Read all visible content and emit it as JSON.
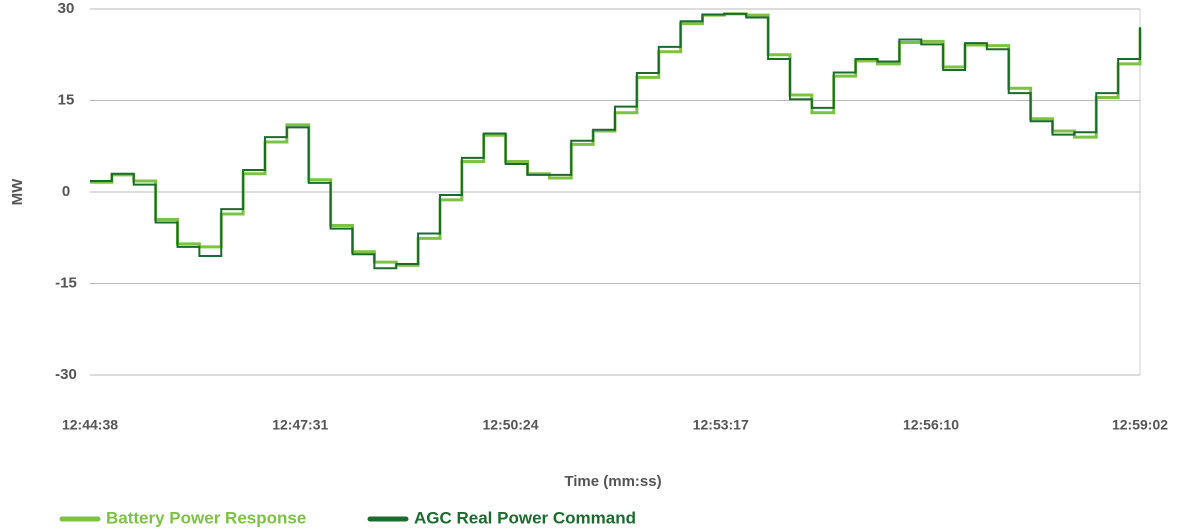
{
  "chart_data": {
    "type": "line",
    "step": true,
    "xlabel": "Time (mm:ss)",
    "ylabel": "MW",
    "x": [
      "12:44:38",
      "12:44:56",
      "12:45:14",
      "12:45:32",
      "12:45:50",
      "12:46:08",
      "12:46:26",
      "12:46:44",
      "12:47:02",
      "12:47:20",
      "12:47:38",
      "12:47:56",
      "12:48:14",
      "12:48:32",
      "12:48:50",
      "12:49:08",
      "12:49:26",
      "12:49:44",
      "12:50:02",
      "12:50:20",
      "12:50:38",
      "12:50:56",
      "12:51:14",
      "12:51:32",
      "12:51:50",
      "12:52:08",
      "12:52:26",
      "12:52:44",
      "12:53:02",
      "12:53:20",
      "12:53:38",
      "12:53:56",
      "12:54:14",
      "12:54:32",
      "12:54:50",
      "12:55:08",
      "12:55:26",
      "12:55:44",
      "12:56:02",
      "12:56:20",
      "12:56:38",
      "12:56:56",
      "12:57:14",
      "12:57:32",
      "12:57:50",
      "12:58:08",
      "12:58:26",
      "12:58:44",
      "12:59:02"
    ],
    "series": [
      {
        "name": "Battery Power Response",
        "color": "#7dc243",
        "values": [
          1.6,
          2.8,
          1.8,
          -4.5,
          -8.5,
          -9,
          -3.6,
          3,
          8.2,
          11,
          2,
          -5.5,
          -9.8,
          -11.5,
          -12,
          -7.6,
          -1.3,
          5,
          9.3,
          5,
          3,
          2.3,
          7.8,
          10,
          13,
          18.8,
          23,
          27.6,
          29,
          29.2,
          29,
          22.5,
          15.9,
          13,
          19,
          21.5,
          21,
          24.5,
          24.7,
          20.5,
          24.1,
          24,
          17,
          12,
          10,
          9,
          15.5,
          21,
          26.9
        ]
      },
      {
        "name": "AGC Real Power Command",
        "color": "#1b6b2f",
        "values": [
          1.8,
          3,
          1.2,
          -5,
          -9,
          -10.5,
          -2.8,
          3.6,
          9,
          10.6,
          1.5,
          -6,
          -10.2,
          -12.5,
          -11.8,
          -6.8,
          -0.5,
          5.6,
          9.6,
          4.6,
          2.8,
          2.8,
          8.4,
          10.2,
          14,
          19.5,
          23.8,
          28,
          29.1,
          29.2,
          28.6,
          21.8,
          15.2,
          13.8,
          19.6,
          21.8,
          21.4,
          25,
          24.2,
          20,
          24.4,
          23.4,
          16.2,
          11.6,
          9.4,
          9.8,
          16.2,
          21.8,
          27
        ]
      }
    ],
    "xlim": [
      "12:44:38",
      "12:59:02"
    ],
    "xticks": [
      "12:44:38",
      "12:47:31",
      "12:50:24",
      "12:53:17",
      "12:56:10",
      "12:59:02"
    ],
    "ylim": [
      -30,
      30
    ],
    "yticks": [
      -30,
      -15,
      0,
      15,
      30
    ],
    "grid": true
  }
}
